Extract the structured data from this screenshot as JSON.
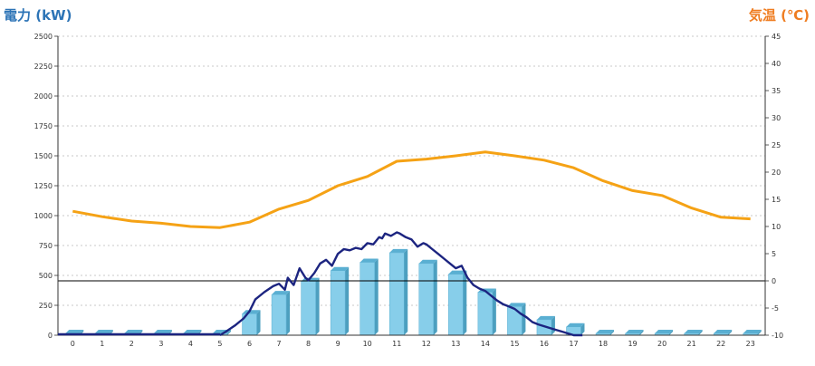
{
  "chart_data": {
    "type": "bar",
    "left_axis_title": "電力 (kW)",
    "right_axis_title": "気温 (℃)",
    "left_ylim": [
      0,
      2500
    ],
    "right_ylim": [
      -10,
      45
    ],
    "left_ticks": [
      0,
      250,
      500,
      750,
      1000,
      1250,
      1500,
      1750,
      2000,
      2250,
      2500
    ],
    "right_ticks": [
      -10,
      -5,
      0,
      5,
      10,
      15,
      20,
      25,
      30,
      35,
      40,
      45
    ],
    "categories": [
      "0",
      "1",
      "2",
      "3",
      "4",
      "5",
      "6",
      "7",
      "8",
      "9",
      "10",
      "11",
      "12",
      "13",
      "14",
      "15",
      "16",
      "17",
      "18",
      "19",
      "20",
      "21",
      "22",
      "23"
    ],
    "grid": true,
    "series": [
      {
        "kind": "bar",
        "axis": "left",
        "values": [
          0,
          0,
          0,
          0,
          0,
          0,
          180,
          340,
          450,
          540,
          610,
          690,
          600,
          510,
          360,
          240,
          130,
          70,
          0,
          0,
          0,
          0,
          0,
          0
        ]
      },
      {
        "kind": "line",
        "axis": "left",
        "x": [
          5.0,
          5.2,
          5.5,
          5.8,
          6.0,
          6.2,
          6.5,
          6.8,
          7.0,
          7.2,
          7.3,
          7.5,
          7.7,
          7.9,
          8.0,
          8.2,
          8.4,
          8.6,
          8.8,
          9.0,
          9.2,
          9.4,
          9.6,
          9.8,
          10.0,
          10.2,
          10.4,
          10.5,
          10.6,
          10.8,
          11.0,
          11.1,
          11.3,
          11.5,
          11.7,
          11.9,
          12.0,
          12.2,
          12.4,
          12.6,
          12.8,
          13.0,
          13.2,
          13.4,
          13.6,
          13.8,
          14.0,
          14.2,
          14.4,
          14.6,
          14.8,
          15.0,
          15.2,
          15.4,
          15.6,
          15.8,
          16.0,
          16.2,
          16.4,
          16.6,
          16.8,
          17.0,
          17.2,
          17.3
        ],
        "y": [
          0,
          30,
          80,
          140,
          200,
          300,
          360,
          410,
          430,
          380,
          480,
          420,
          560,
          480,
          460,
          520,
          600,
          630,
          580,
          680,
          720,
          710,
          730,
          720,
          770,
          760,
          820,
          810,
          850,
          830,
          860,
          850,
          820,
          800,
          740,
          770,
          760,
          720,
          680,
          640,
          600,
          560,
          580,
          480,
          420,
          390,
          370,
          330,
          290,
          260,
          240,
          220,
          180,
          150,
          110,
          90,
          75,
          60,
          45,
          30,
          15,
          0,
          -30,
          -60
        ]
      },
      {
        "kind": "line",
        "axis": "right",
        "values": [
          12.8,
          11.8,
          11.0,
          10.6,
          10.0,
          9.8,
          10.8,
          13.2,
          14.8,
          17.5,
          19.2,
          22.0,
          22.4,
          23.0,
          23.7,
          23.0,
          22.2,
          20.8,
          18.4,
          16.6,
          15.7,
          13.4,
          11.7,
          11.4
        ]
      }
    ]
  }
}
